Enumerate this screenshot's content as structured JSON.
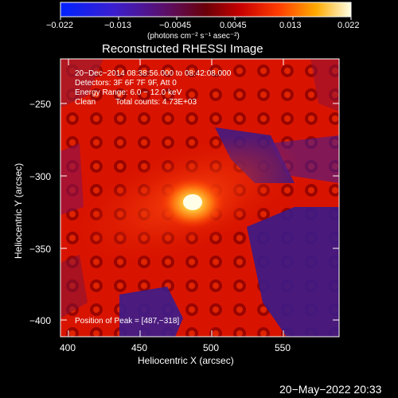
{
  "colorbar": {
    "ticks": [
      "−0.022",
      "−0.013",
      "−0.0045",
      "0.0045",
      "0.013",
      "0.022"
    ],
    "unit_label": "(photons cm⁻² s⁻¹ asec⁻²)"
  },
  "plot": {
    "title": "Reconstructed RHESSI Image",
    "xlabel": "Heliocentric X (arcsec)",
    "ylabel": "Heliocentric Y (arcsec)",
    "xticks": [
      "400",
      "450",
      "500",
      "550"
    ],
    "yticks": [
      "−250",
      "−300",
      "−350",
      "−400"
    ],
    "xlim": [
      395,
      590
    ],
    "ylim": [
      -413,
      -222
    ]
  },
  "annotations": {
    "time_range": "20−Dec−2014 08:38:56.000 to 08:42:08.000",
    "detectors": "Detectors: 3F 6F 7F 9F, Att 0",
    "energy": "Energy Range: 6.0 − 12.0 keV",
    "method": "Clean",
    "counts": "Total counts: 4.73E+03",
    "peak": "Position of Peak = [487,−318]"
  },
  "footer": {
    "timestamp": "20−May−2022 20:33"
  },
  "colors": {
    "background": "#000000",
    "foreground": "#ffffff"
  }
}
